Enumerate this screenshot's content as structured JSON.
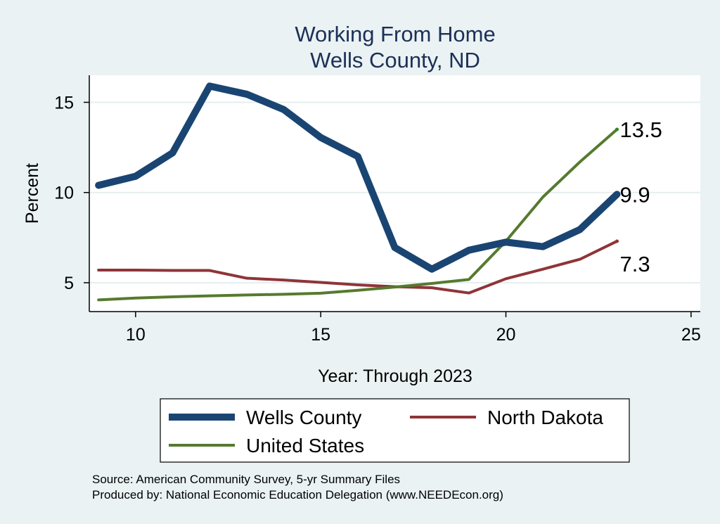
{
  "chart_data": {
    "type": "line",
    "title": [
      "Working From Home",
      "Wells County, ND"
    ],
    "xlabel": "Year: Through 2023",
    "ylabel": "Percent",
    "xlim": [
      8.75,
      25.25
    ],
    "ylim": [
      3.4,
      16.5
    ],
    "xticks": [
      "10",
      "15",
      "20",
      "25"
    ],
    "yticks": [
      "5",
      "10",
      "15"
    ],
    "grid": true,
    "legend_position": "bottom",
    "x": [
      9,
      10,
      11,
      12,
      13,
      14,
      15,
      16,
      17,
      18,
      19,
      20,
      21,
      22,
      23
    ],
    "series": [
      {
        "name": "Wells County",
        "color": "#1a4572",
        "values": [
          10.4,
          10.9,
          12.2,
          15.9,
          15.45,
          14.6,
          13.05,
          12.0,
          6.95,
          5.75,
          6.8,
          7.25,
          7.0,
          7.95,
          9.9
        ],
        "end_label": "9.9"
      },
      {
        "name": "North Dakota",
        "color": "#8f3438",
        "values": [
          5.7,
          5.7,
          5.68,
          5.68,
          5.25,
          5.15,
          5.02,
          4.88,
          4.78,
          4.72,
          4.43,
          5.22,
          5.75,
          6.3,
          7.3
        ],
        "end_label": "7.3"
      },
      {
        "name": "United States",
        "color": "#567a2f",
        "values": [
          4.05,
          4.15,
          4.22,
          4.27,
          4.32,
          4.36,
          4.42,
          4.58,
          4.76,
          4.96,
          5.18,
          7.3,
          9.75,
          11.7,
          13.5
        ],
        "end_label": "13.5"
      }
    ]
  },
  "notes": {
    "source": "Source: American Community Survey, 5-yr Summary Files",
    "produced": "Produced by: National Economic Education Delegation (www.NEEDEcon.org)"
  }
}
